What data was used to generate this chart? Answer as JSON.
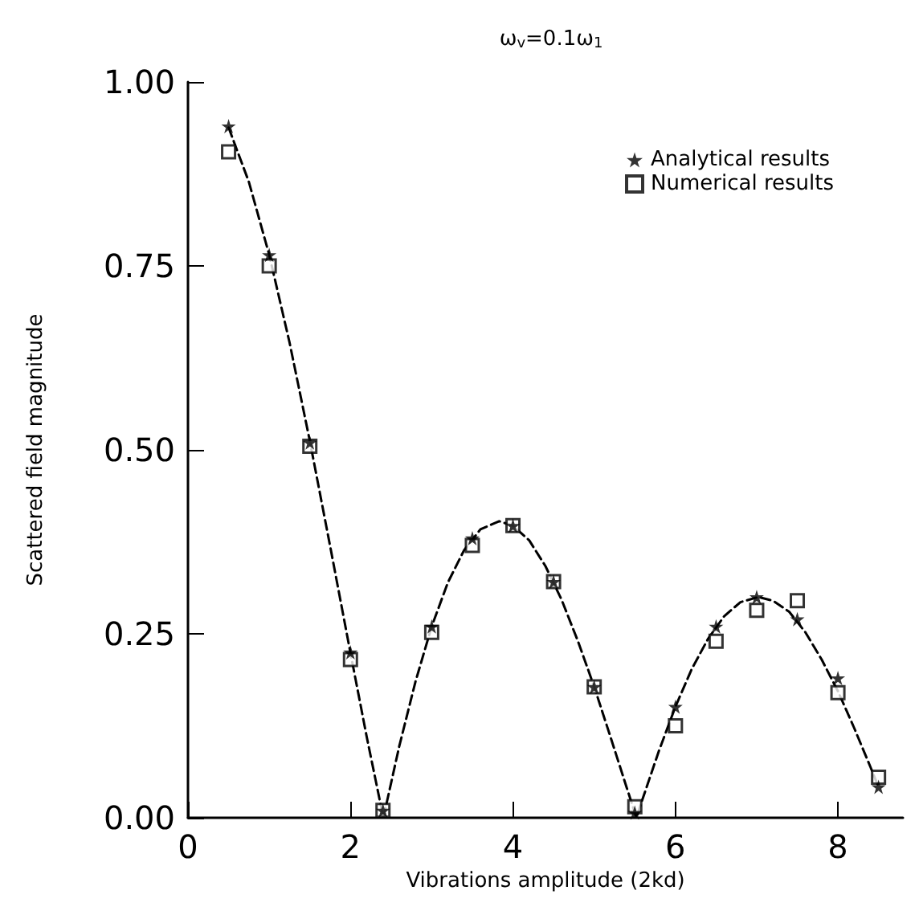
{
  "chart_data": {
    "type": "scatter",
    "title": "ω$_{v}$=0.1ω$_{1}$",
    "xlabel": "Vibrations amplitude (2kd)",
    "ylabel": "Scattered field magnitude",
    "x": [
      0.5,
      1,
      1.5,
      2,
      2.4,
      3,
      3.5,
      4,
      4.5,
      5,
      5.5,
      6,
      6.5,
      7,
      7.5,
      8,
      8.5
    ],
    "series": [
      {
        "name": "Analytical results",
        "color": "#000000",
        "marker": "star",
        "values": [
          0.94,
          0.765,
          0.51,
          0.225,
          0.01,
          0.26,
          0.38,
          0.397,
          0.321,
          0.178,
          0.007,
          0.151,
          0.26,
          0.3,
          0.27,
          0.19,
          0.042
        ]
      },
      {
        "name": "Numerical results",
        "color": "#000000",
        "marker": "square",
        "values": [
          0.905,
          0.75,
          0.505,
          0.215,
          0.01,
          0.252,
          0.37,
          0.397,
          0.321,
          0.178,
          0.015,
          0.125,
          0.24,
          0.282,
          0.295,
          0.17,
          0.055
        ]
      },
      {
        "type": "line",
        "color": "#000000",
        "marker": "none",
        "line_style": "dashed",
        "x": [
          0.5,
          0.75,
          1,
          1.25,
          1.5,
          1.75,
          2,
          2.2,
          2.405,
          2.6,
          2.8,
          3,
          3.2,
          3.4,
          3.6,
          3.83,
          4,
          4.2,
          4.4,
          4.6,
          4.8,
          5,
          5.2,
          5.4,
          5.52,
          5.6,
          5.8,
          6,
          6.2,
          6.4,
          6.6,
          6.8,
          7.02,
          7.2,
          7.4,
          7.6,
          7.8,
          8,
          8.2,
          8.4,
          8.5
        ],
        "values": [
          0.938,
          0.864,
          0.765,
          0.646,
          0.512,
          0.369,
          0.224,
          0.11,
          0,
          0.097,
          0.185,
          0.26,
          0.32,
          0.364,
          0.392,
          0.403,
          0.397,
          0.377,
          0.342,
          0.296,
          0.24,
          0.178,
          0.11,
          0.041,
          0,
          0.027,
          0.092,
          0.151,
          0.202,
          0.243,
          0.274,
          0.293,
          0.3,
          0.295,
          0.28,
          0.252,
          0.215,
          0.172,
          0.122,
          0.069,
          0.042
        ]
      }
    ],
    "xlim": [
      0,
      8.8
    ],
    "xticks": [
      0,
      2,
      4,
      6,
      8
    ],
    "ylim": [
      0,
      1
    ],
    "yticks": [
      {
        "value": 0,
        "label": "0.00"
      },
      {
        "value": 0.25,
        "label": "0.25"
      },
      {
        "value": 0.5,
        "label": "0.50"
      },
      {
        "value": 0.75,
        "label": "0.75"
      },
      {
        "value": 1,
        "label": "1.00"
      }
    ],
    "grid": false,
    "legend": "top right"
  }
}
